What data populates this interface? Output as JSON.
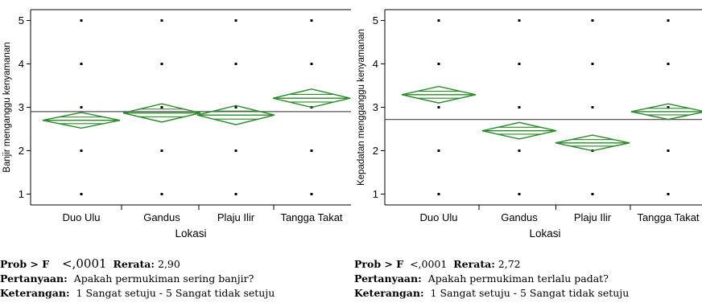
{
  "chart_data": [
    {
      "type": "scatter",
      "subtype": "oneway-anova-means-diamonds",
      "xlabel": "Lokasi",
      "ylabel": "Banjir menganggu kenyamanan",
      "categories": [
        "Duo Ulu",
        "Gandus",
        "Plaju Ilir",
        "Tangga Takat"
      ],
      "yticks": [
        1,
        2,
        3,
        4,
        5
      ],
      "ylim": [
        0.75,
        5.25
      ],
      "grand_mean": 2.9,
      "points_levels": [
        1,
        2,
        3,
        4,
        5
      ],
      "groups": [
        {
          "category": "Duo Ulu",
          "mean": 2.7,
          "ci_low": 2.52,
          "ci_high": 2.88
        },
        {
          "category": "Gandus",
          "mean": 2.87,
          "ci_low": 2.66,
          "ci_high": 3.08
        },
        {
          "category": "Plaju Ilir",
          "mean": 2.82,
          "ci_low": 2.6,
          "ci_high": 3.04
        },
        {
          "category": "Tangga Takat",
          "mean": 3.21,
          "ci_low": 3.0,
          "ci_high": 3.42
        }
      ],
      "diamond_color": "#2a8a2a",
      "mean_line_color": "#555555",
      "grid": false,
      "legend": "none"
    },
    {
      "type": "scatter",
      "subtype": "oneway-anova-means-diamonds",
      "xlabel": "Lokasi",
      "ylabel": "Kepadatan mengganggu kenyamanan",
      "categories": [
        "Duo Ulu",
        "Gandus",
        "Plaju Ilir",
        "Tangga Takat"
      ],
      "yticks": [
        1,
        2,
        3,
        4,
        5
      ],
      "ylim": [
        0.75,
        5.25
      ],
      "grand_mean": 2.72,
      "points_levels": [
        1,
        2,
        3,
        4,
        5
      ],
      "groups": [
        {
          "category": "Duo Ulu",
          "mean": 3.29,
          "ci_low": 3.1,
          "ci_high": 3.48
        },
        {
          "category": "Gandus",
          "mean": 2.46,
          "ci_low": 2.27,
          "ci_high": 2.65
        },
        {
          "category": "Plaju Ilir",
          "mean": 2.18,
          "ci_low": 2.0,
          "ci_high": 2.36
        },
        {
          "category": "Tangga Takat",
          "mean": 2.9,
          "ci_low": 2.72,
          "ci_high": 3.08
        }
      ],
      "diamond_color": "#2a8a2a",
      "mean_line_color": "#555555",
      "grid": false,
      "legend": "none"
    }
  ],
  "captions": [
    {
      "prob_label": "Prob > F",
      "prob_value": "<,0001",
      "rerata_label": "Rerata:",
      "rerata_value": "2,90",
      "pertanyaan_label": "Pertanyaan:",
      "pertanyaan_value": "Apakah permukiman sering banjir?",
      "keterangan_label": "Keterangan:",
      "keterangan_value": "1 Sangat setuju - 5 Sangat tidak setuju"
    },
    {
      "prob_label": "Prob > F",
      "prob_value": "<,0001",
      "rerata_label": "Rerata:",
      "rerata_value": "2,72",
      "pertanyaan_label": "Pertanyaan:",
      "pertanyaan_value": "Apakah permukiman terlalu padat?",
      "keterangan_label": "Keterangan:",
      "keterangan_value": "1 Sangat setuju - 5 Sangat tidak setuju"
    }
  ]
}
